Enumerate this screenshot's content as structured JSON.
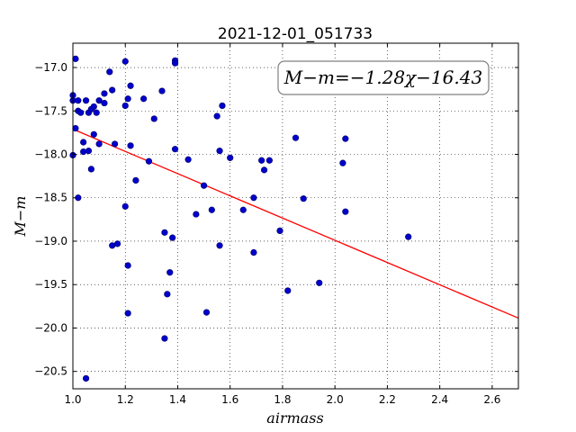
{
  "chart_data": {
    "type": "scatter",
    "title": "2021-12-01_051733",
    "xlabel": "airmass",
    "ylabel": "M−m",
    "xlim": [
      1.0,
      2.7
    ],
    "ylim": [
      -20.7,
      -16.72
    ],
    "y_inverted": true,
    "grid": true,
    "x_ticks": [
      1.0,
      1.2,
      1.4,
      1.6,
      1.8,
      2.0,
      2.2,
      2.4,
      2.6
    ],
    "x_tick_labels": [
      "1.0",
      "1.2",
      "1.4",
      "1.6",
      "1.8",
      "2.0",
      "2.2",
      "2.4",
      "2.6"
    ],
    "y_ticks": [
      -17.0,
      -17.5,
      -18.0,
      -18.5,
      -19.0,
      -19.5,
      -20.0,
      -20.5
    ],
    "y_tick_labels": [
      "−17.0",
      "−17.5",
      "−18.0",
      "−18.5",
      "−19.0",
      "−19.5",
      "−20.0",
      "−20.5"
    ],
    "annotation": "M−m=−1.28χ−16.43",
    "fit": {
      "slope": -1.28,
      "intercept": -16.43,
      "color": "#ff0000"
    },
    "point_color": "#0000cc",
    "points": [
      [
        1.0,
        -17.32
      ],
      [
        1.0,
        -17.38
      ],
      [
        1.0,
        -18.01
      ],
      [
        1.01,
        -16.9
      ],
      [
        1.01,
        -17.7
      ],
      [
        1.02,
        -17.38
      ],
      [
        1.02,
        -17.5
      ],
      [
        1.03,
        -17.52
      ],
      [
        1.02,
        -18.5
      ],
      [
        1.04,
        -17.86
      ],
      [
        1.04,
        -17.97
      ],
      [
        1.05,
        -17.38
      ],
      [
        1.05,
        -20.58
      ],
      [
        1.06,
        -17.96
      ],
      [
        1.06,
        -17.52
      ],
      [
        1.07,
        -18.17
      ],
      [
        1.07,
        -17.48
      ],
      [
        1.08,
        -17.45
      ],
      [
        1.08,
        -17.77
      ],
      [
        1.09,
        -17.52
      ],
      [
        1.1,
        -17.38
      ],
      [
        1.1,
        -17.88
      ],
      [
        1.12,
        -17.3
      ],
      [
        1.12,
        -17.41
      ],
      [
        1.14,
        -17.05
      ],
      [
        1.15,
        -17.26
      ],
      [
        1.15,
        -19.05
      ],
      [
        1.16,
        -17.88
      ],
      [
        1.17,
        -19.03
      ],
      [
        1.2,
        -16.93
      ],
      [
        1.2,
        -17.44
      ],
      [
        1.2,
        -18.6
      ],
      [
        1.21,
        -17.36
      ],
      [
        1.21,
        -19.28
      ],
      [
        1.21,
        -19.83
      ],
      [
        1.22,
        -17.9
      ],
      [
        1.22,
        -17.21
      ],
      [
        1.24,
        -18.3
      ],
      [
        1.27,
        -17.36
      ],
      [
        1.29,
        -18.08
      ],
      [
        1.31,
        -17.59
      ],
      [
        1.34,
        -17.27
      ],
      [
        1.35,
        -18.9
      ],
      [
        1.35,
        -20.12
      ],
      [
        1.36,
        -19.61
      ],
      [
        1.37,
        -19.36
      ],
      [
        1.38,
        -18.96
      ],
      [
        1.39,
        -16.92
      ],
      [
        1.39,
        -16.95
      ],
      [
        1.39,
        -17.94
      ],
      [
        1.44,
        -18.06
      ],
      [
        1.47,
        -18.69
      ],
      [
        1.5,
        -18.36
      ],
      [
        1.51,
        -19.82
      ],
      [
        1.53,
        -18.64
      ],
      [
        1.55,
        -17.56
      ],
      [
        1.56,
        -17.96
      ],
      [
        1.56,
        -19.05
      ],
      [
        1.57,
        -17.44
      ],
      [
        1.6,
        -18.04
      ],
      [
        1.65,
        -18.64
      ],
      [
        1.69,
        -19.13
      ],
      [
        1.69,
        -18.5
      ],
      [
        1.72,
        -18.07
      ],
      [
        1.73,
        -18.18
      ],
      [
        1.75,
        -18.07
      ],
      [
        1.79,
        -18.88
      ],
      [
        1.82,
        -19.57
      ],
      [
        1.85,
        -17.81
      ],
      [
        1.88,
        -18.51
      ],
      [
        1.94,
        -19.48
      ],
      [
        2.03,
        -18.1
      ],
      [
        2.04,
        -17.82
      ],
      [
        2.04,
        -18.66
      ],
      [
        2.28,
        -18.95
      ]
    ]
  }
}
